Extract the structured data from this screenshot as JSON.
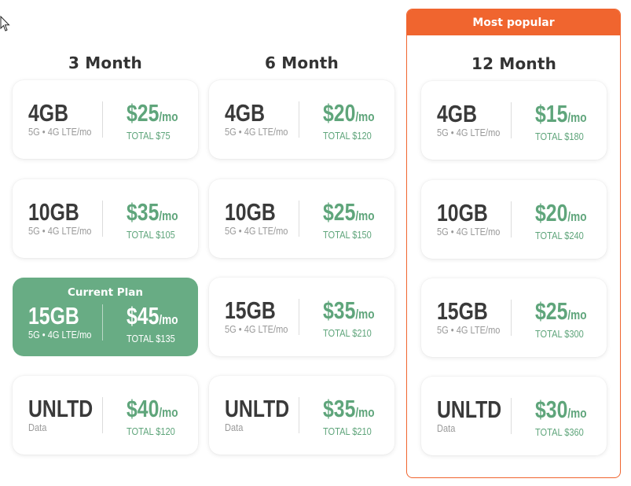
{
  "banner": {
    "label": "Most popular"
  },
  "columns": [
    {
      "title": "3 Month",
      "plans": [
        {
          "data": "4GB",
          "sub": "5G • 4G LTE/mo",
          "price": "$25",
          "unit": "/mo",
          "total": "TOTAL $75"
        },
        {
          "data": "10GB",
          "sub": "5G • 4G LTE/mo",
          "price": "$35",
          "unit": "/mo",
          "total": "TOTAL $105"
        },
        {
          "current_label": "Current Plan",
          "data": "15GB",
          "sub": "5G • 4G LTE/mo",
          "price": "$45",
          "unit": "/mo",
          "total": "TOTAL $135"
        },
        {
          "data": "UNLTD",
          "sub": "Data",
          "price": "$40",
          "unit": "/mo",
          "total": "TOTAL $120"
        }
      ]
    },
    {
      "title": "6 Month",
      "plans": [
        {
          "data": "4GB",
          "sub": "5G • 4G LTE/mo",
          "price": "$20",
          "unit": "/mo",
          "total": "TOTAL $120"
        },
        {
          "data": "10GB",
          "sub": "5G • 4G LTE/mo",
          "price": "$25",
          "unit": "/mo",
          "total": "TOTAL $150"
        },
        {
          "data": "15GB",
          "sub": "5G • 4G LTE/mo",
          "price": "$35",
          "unit": "/mo",
          "total": "TOTAL $210"
        },
        {
          "data": "UNLTD",
          "sub": "Data",
          "price": "$35",
          "unit": "/mo",
          "total": "TOTAL $210"
        }
      ]
    },
    {
      "title": "12 Month",
      "plans": [
        {
          "data": "4GB",
          "sub": "5G • 4G LTE/mo",
          "price": "$15",
          "unit": "/mo",
          "total": "TOTAL $180"
        },
        {
          "data": "10GB",
          "sub": "5G • 4G LTE/mo",
          "price": "$20",
          "unit": "/mo",
          "total": "TOTAL $240"
        },
        {
          "data": "15GB",
          "sub": "5G • 4G LTE/mo",
          "price": "$25",
          "unit": "/mo",
          "total": "TOTAL $300"
        },
        {
          "data": "UNLTD",
          "sub": "Data",
          "price": "$30",
          "unit": "/mo",
          "total": "TOTAL $360"
        }
      ]
    }
  ],
  "colors": {
    "accent_green": "#5fa57b",
    "current_bg": "#68ac84",
    "popular": "#f0652f"
  },
  "icons": {
    "cursor": "mouse-cursor-icon"
  }
}
